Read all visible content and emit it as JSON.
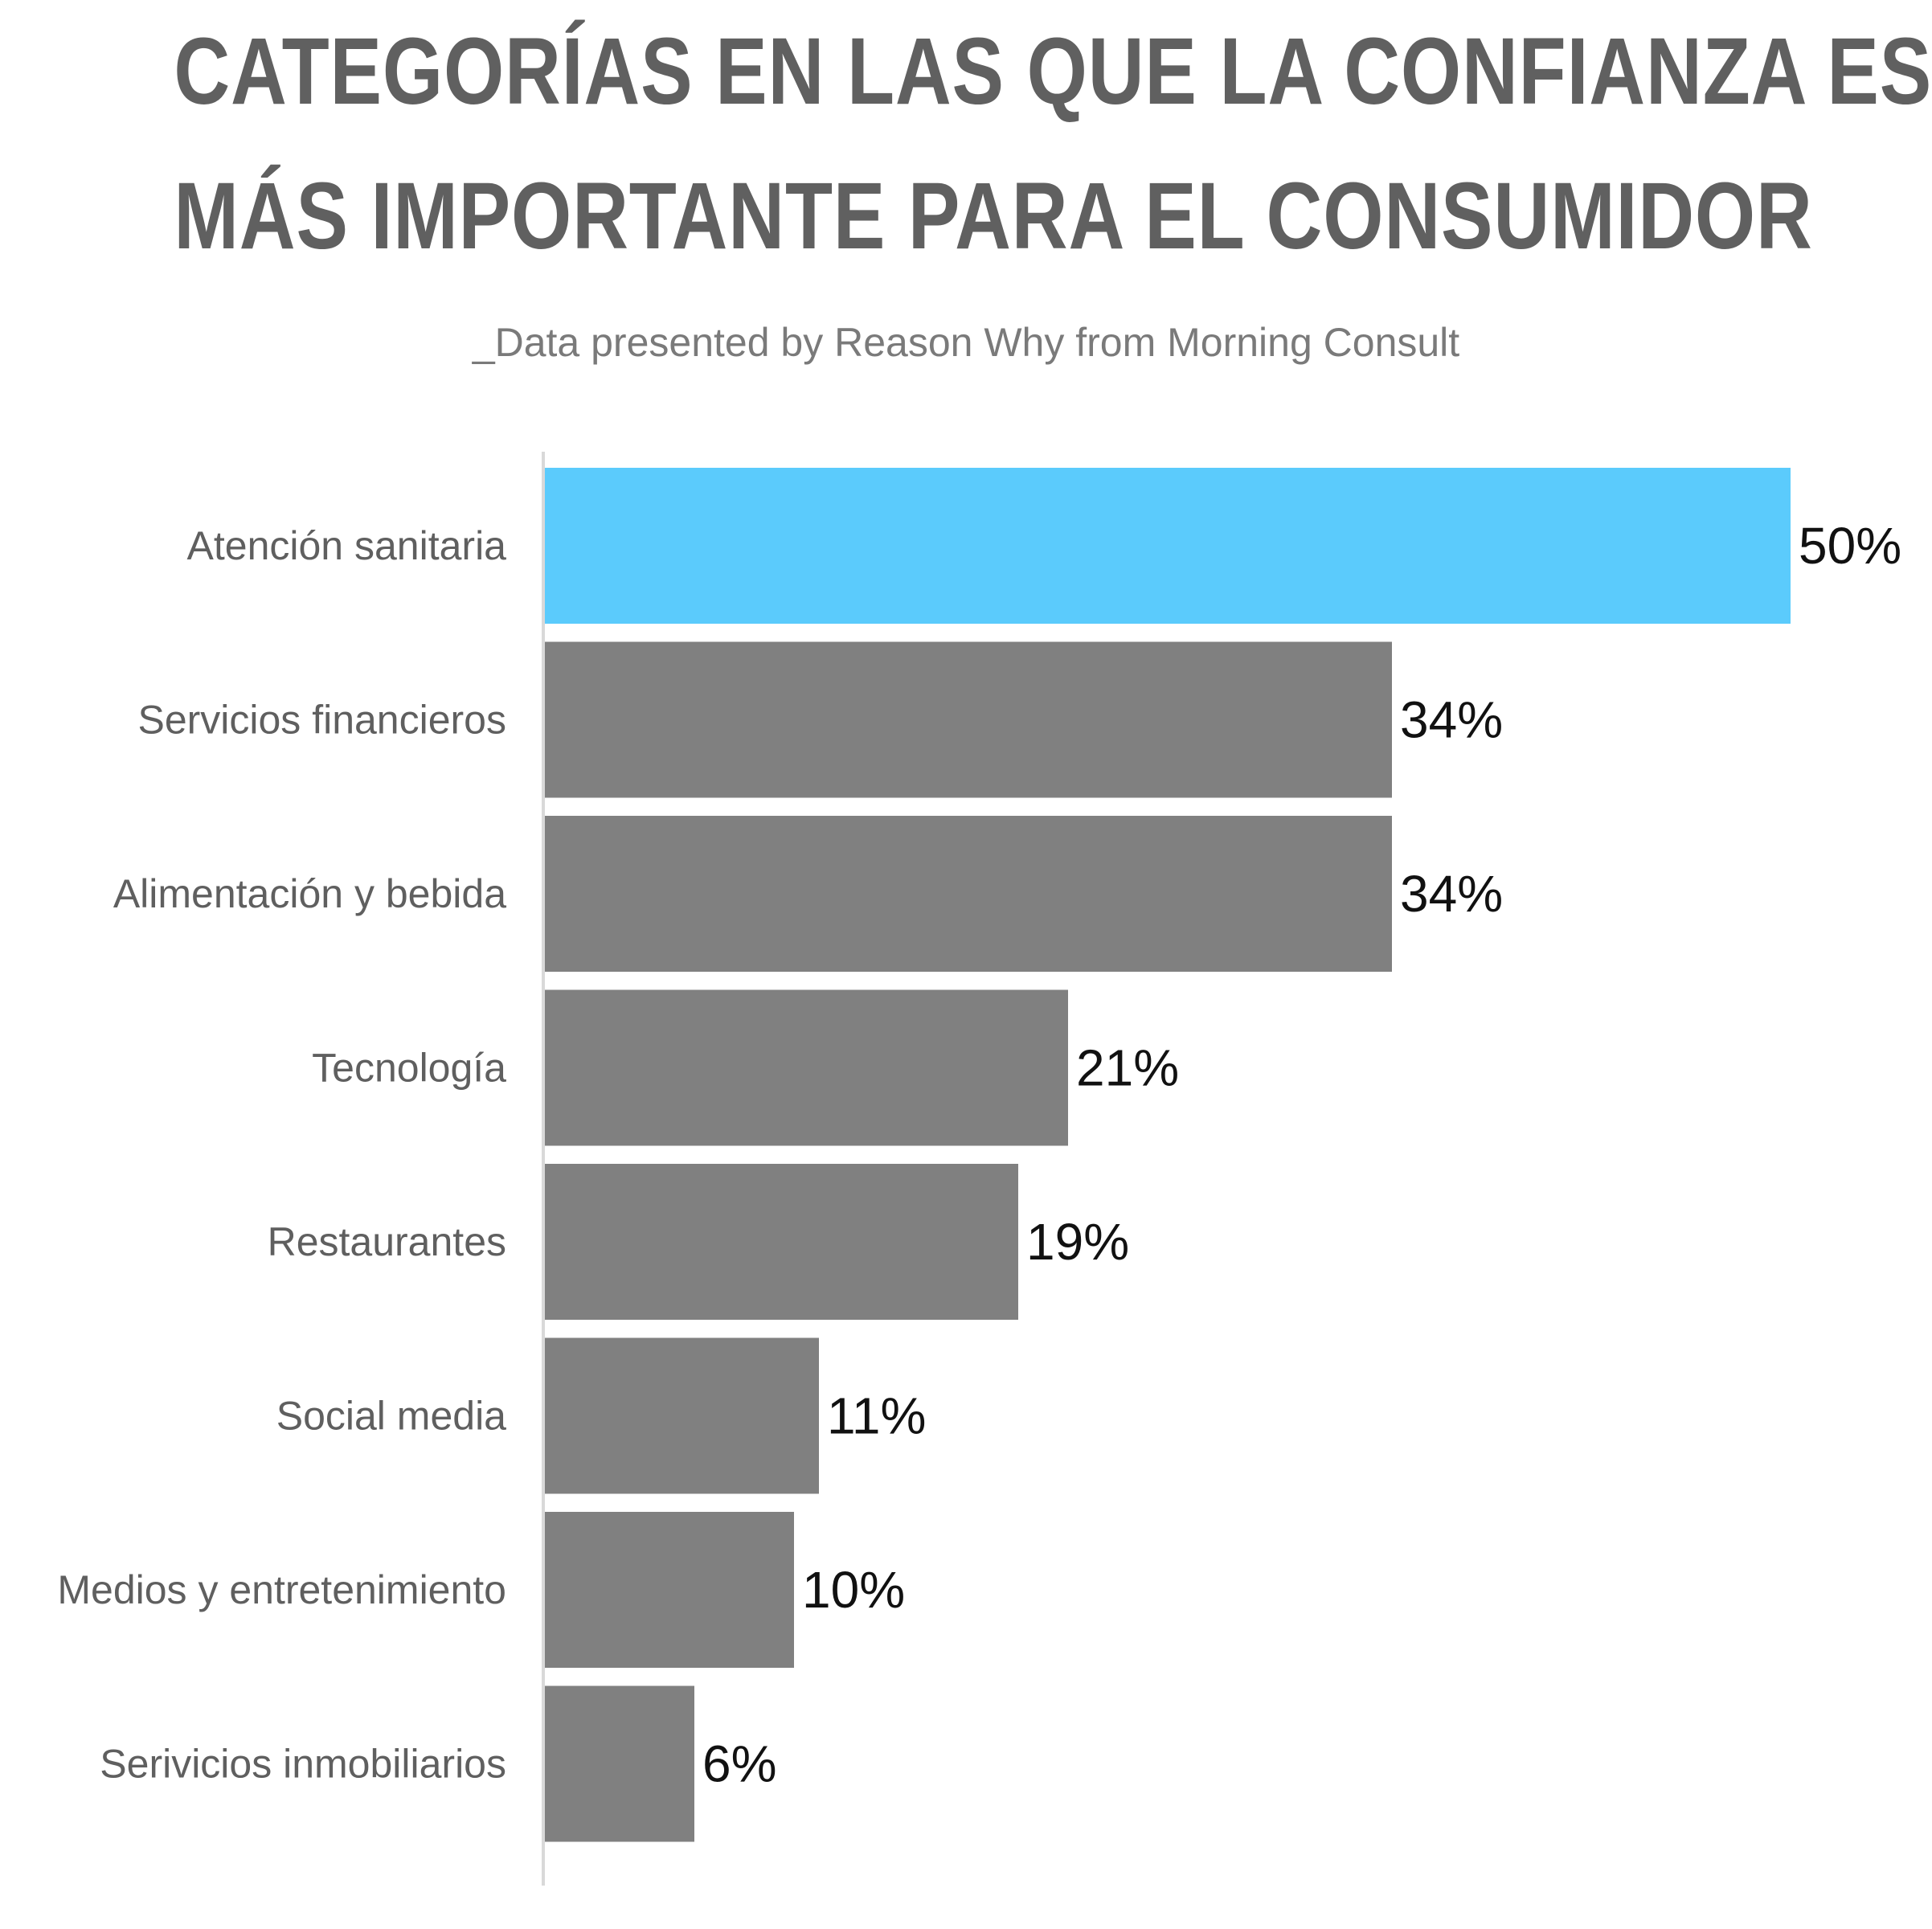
{
  "title_lines": [
    "CATEGORÍAS EN LAS QUE LA CONFIANZA ES",
    "MÁS IMPORTANTE PARA EL CONSUMIDOR"
  ],
  "subtitle": "_Data presented by Reason Why from Morning Consult",
  "chart_data": {
    "type": "bar",
    "orientation": "horizontal",
    "title": "CATEGORÍAS EN LAS QUE LA CONFIANZA ES MÁS IMPORTANTE PARA EL CONSUMIDOR",
    "subtitle": "_Data presented by Reason Why from Morning Consult",
    "categories": [
      "Atención sanitaria",
      "Servicios financieros",
      "Alimentación y bebida",
      "Tecnología",
      "Restaurantes",
      "Social media",
      "Medios y entretenimiento",
      "Serivicios inmobiliarios"
    ],
    "values": [
      50,
      34,
      34,
      21,
      19,
      11,
      10,
      6
    ],
    "value_labels": [
      "50%",
      "34%",
      "34%",
      "21%",
      "19%",
      "11%",
      "10%",
      "6%"
    ],
    "unit": "%",
    "xlim": [
      0,
      50
    ],
    "grid": false,
    "colors": {
      "highlight": "#5bcbfc",
      "default": "#808080",
      "axis": "#d9d9d9"
    },
    "highlight_index": 0
  }
}
